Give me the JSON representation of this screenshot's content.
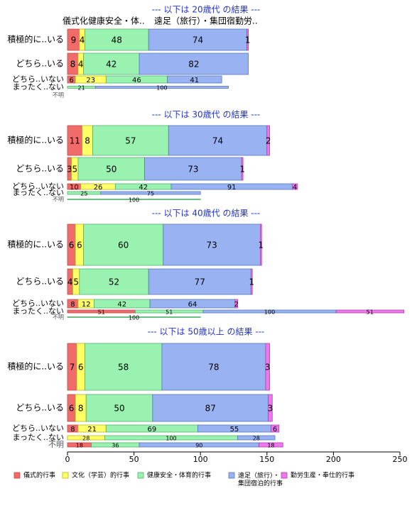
{
  "chart_data": {
    "type": "bar",
    "orientation": "horizontal",
    "stacked": true,
    "xlim": [
      0,
      250
    ],
    "x_ticks": [
      "0",
      "50",
      "100",
      "150",
      "200",
      "250"
    ],
    "grid": false,
    "legend_position": "bottom",
    "series": [
      {
        "name": "儀式的行事",
        "color": "#f26b6b"
      },
      {
        "name": "文化（学芸）的行事",
        "color": "#ffff66"
      },
      {
        "name": "健康安全・体育的行事",
        "color": "#99f2b0"
      },
      {
        "name": "遠足（旅行）・集団宿泊的行事",
        "color": "#99b3f2"
      },
      {
        "name": "勤労生産・奉仕的行事",
        "color": "#ee77ee"
      }
    ],
    "top_category_labels": [
      "儀式化健康安全・体..",
      "遠足（旅行）・集団宿勤労.."
    ],
    "panels": [
      {
        "title": "--- 以下は 20歳代 の結果 ---",
        "rows": [
          {
            "label": "積極的に..いる",
            "values": [
              9,
              4,
              48,
              74,
              1
            ]
          },
          {
            "label": "どちら..いる",
            "values": [
              8,
              4,
              42,
              82,
              0
            ]
          },
          {
            "label": "どちら..いない",
            "values": [
              6,
              23,
              46,
              41,
              0
            ]
          },
          {
            "label": "まったく..ない",
            "values": [
              0,
              0,
              21,
              100,
              0
            ]
          },
          {
            "label": "不明",
            "values": [
              0,
              0,
              0,
              0,
              0
            ]
          }
        ]
      },
      {
        "title": "--- 以下は 30歳代 の結果 ---",
        "rows": [
          {
            "label": "積極的に..いる",
            "values": [
              11,
              8,
              57,
              74,
              2
            ]
          },
          {
            "label": "どちら..いる",
            "values": [
              3,
              5,
              50,
              73,
              1
            ]
          },
          {
            "label": "どちら..いない",
            "values": [
              10,
              26,
              42,
              91,
              4
            ]
          },
          {
            "label": "まったく..ない",
            "values": [
              0,
              0,
              25,
              75,
              0
            ]
          },
          {
            "label": "不明",
            "values": [
              0,
              0,
              100,
              0,
              0
            ]
          }
        ]
      },
      {
        "title": "--- 以下は 40歳代 の結果 ---",
        "rows": [
          {
            "label": "積極的に..いる",
            "values": [
              6,
              6,
              60,
              73,
              1
            ]
          },
          {
            "label": "どちら..いる",
            "values": [
              4,
              5,
              52,
              77,
              1
            ]
          },
          {
            "label": "どちら..いない",
            "values": [
              8,
              12,
              42,
              64,
              2
            ]
          },
          {
            "label": "まったく..ない",
            "values": [
              51,
              0,
              51,
              100,
              51
            ]
          },
          {
            "label": "不明",
            "values": [
              0,
              0,
              100,
              0,
              0
            ]
          }
        ]
      },
      {
        "title": "--- 以下は 50歳以上 の結果 ---",
        "rows": [
          {
            "label": "積極的に..いる",
            "values": [
              7,
              6,
              58,
              78,
              3
            ]
          },
          {
            "label": "どちら..いる",
            "values": [
              6,
              8,
              50,
              87,
              3
            ]
          },
          {
            "label": "どちら..いない",
            "values": [
              8,
              21,
              69,
              55,
              6
            ]
          },
          {
            "label": "まったく..ない",
            "values": [
              0,
              28,
              100,
              28,
              0
            ]
          },
          {
            "label": "不明",
            "values": [
              18,
              0,
              36,
              90,
              18
            ]
          }
        ]
      }
    ]
  }
}
